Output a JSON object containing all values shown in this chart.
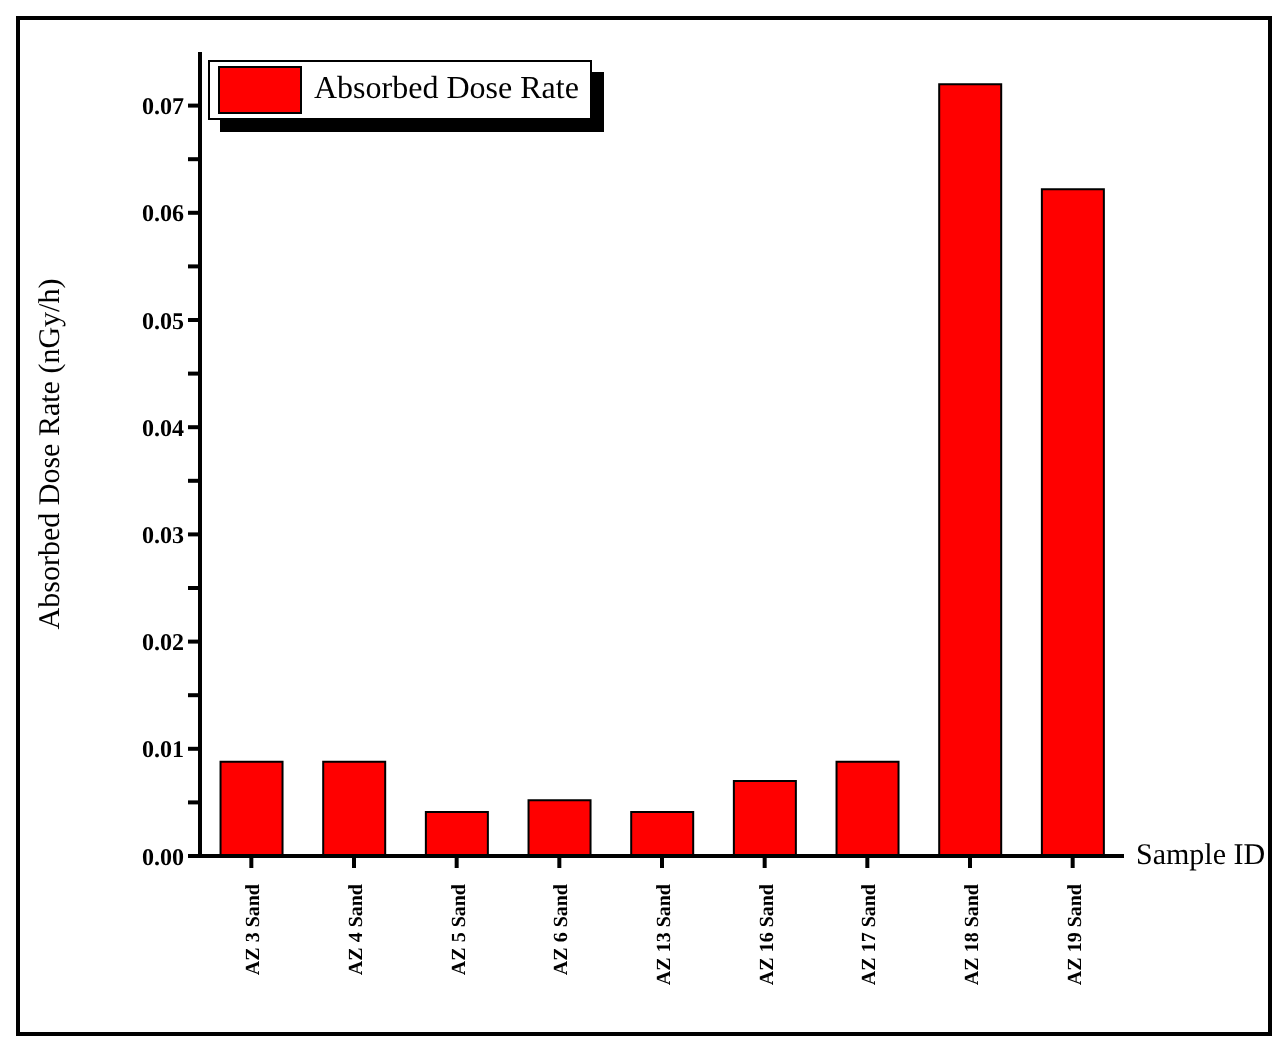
{
  "chart_data": {
    "type": "bar",
    "xlabel": "Sample ID",
    "ylabel": "Absorbed Dose Rate (nGy/h)",
    "categories": [
      "AZ 3 Sand",
      "AZ 4 Sand",
      "AZ 5 Sand",
      "AZ 6 Sand",
      "AZ 13 Sand",
      "AZ 16 Sand",
      "AZ 17 Sand",
      "AZ 18 Sand",
      "AZ 19 Sand"
    ],
    "series": [
      {
        "name": "Absorbed Dose Rate",
        "color": "#ff0000",
        "values": [
          0.0088,
          0.0088,
          0.0041,
          0.0052,
          0.0041,
          0.007,
          0.0088,
          0.072,
          0.0622
        ]
      }
    ],
    "ylim": [
      0,
      0.075
    ],
    "yticks": [
      "0.00",
      {
        "value": 0.005,
        "label": null
      },
      {
        "value": 0.01,
        "label": "0.01"
      },
      {
        "value": 0.015,
        "label": null
      },
      {
        "value": 0.02,
        "label": "0.02"
      },
      {
        "value": 0.025,
        "label": null
      },
      {
        "value": 0.03,
        "label": "0.03"
      },
      {
        "value": 0.035,
        "label": null
      },
      {
        "value": 0.04,
        "label": "0.04"
      },
      {
        "value": 0.045,
        "label": null
      },
      {
        "value": 0.05,
        "label": "0.05"
      },
      {
        "value": 0.055,
        "label": null
      },
      {
        "value": 0.06,
        "label": "0.06"
      },
      {
        "value": 0.065,
        "label": null
      },
      {
        "value": 0.07,
        "label": "0.07"
      }
    ],
    "grid": false,
    "legend": "top left"
  }
}
